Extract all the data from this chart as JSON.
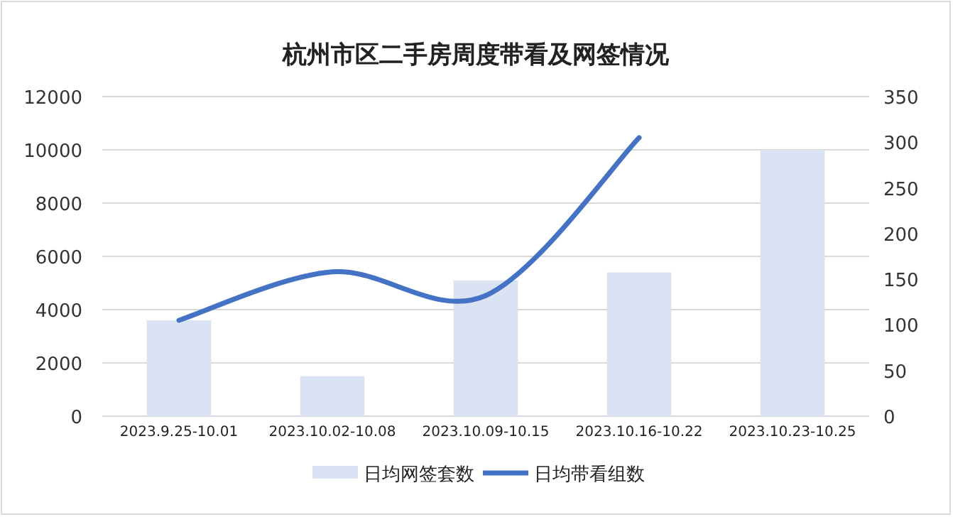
{
  "chart_data": {
    "type": "bar",
    "title": "杭州市区二手房周度带看及网签情况",
    "categories": [
      "2023.9.25-10.01",
      "2023.10.02-10.08",
      "2023.10.09-10.15",
      "2023.10.16-10.22",
      "2023.10.23-10.25"
    ],
    "series": [
      {
        "name": "日均网签套数",
        "color": "#dae3f3",
        "values": [
          3600,
          1500,
          5100,
          5400,
          10000
        ]
      },
      {
        "name": "日均带看组数",
        "type": "line",
        "axis": "y2",
        "color": "#4472c4",
        "values": [
          105,
          158,
          132,
          305,
          null
        ]
      }
    ],
    "ylim": [
      0,
      12000
    ],
    "yticks": [
      0,
      2000,
      4000,
      6000,
      8000,
      10000,
      12000
    ],
    "y2lim": [
      0,
      350
    ],
    "y2ticks": [
      0,
      50,
      100,
      150,
      200,
      250,
      300,
      350
    ],
    "grid": "y",
    "legend": "bottom"
  }
}
